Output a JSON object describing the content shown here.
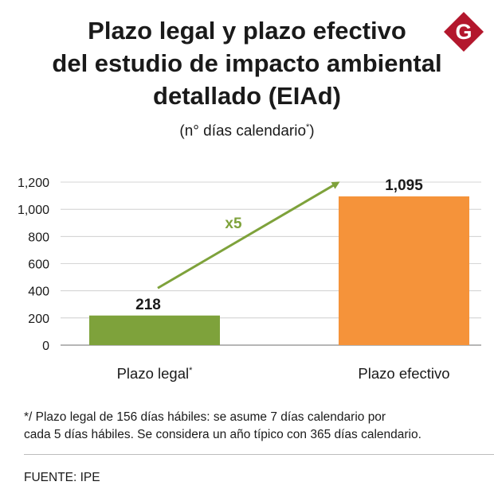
{
  "header": {
    "title_lines": [
      "Plazo legal y plazo efectivo",
      "del estudio de impacto ambiental",
      "detallado (EIAd)"
    ],
    "subtitle_main": "(n° días calendario",
    "subtitle_mark": "*",
    "subtitle_close": ")",
    "logo_letter": "G"
  },
  "chart_data": {
    "type": "bar",
    "categories": [
      "Plazo legal",
      "Plazo efectivo"
    ],
    "category_marks": [
      "*",
      ""
    ],
    "values": [
      218,
      1095
    ],
    "data_labels": [
      "218",
      "1,095"
    ],
    "ylim": [
      0,
      1200
    ],
    "yticks": [
      0,
      200,
      400,
      600,
      800,
      1000,
      1200
    ],
    "ytick_labels": [
      "0",
      "200",
      "400",
      "600",
      "800",
      "1,000",
      "1,200"
    ],
    "grid": true,
    "colors": [
      "#7ea23b",
      "#f5933a"
    ],
    "annotation": {
      "text": "x5",
      "color": "#7ea23b",
      "from_value": 420,
      "to_value": 1195
    }
  },
  "footnote": {
    "lines": [
      "*/ Plazo legal de 156 días hábiles: se asume 7 días calendario por",
      "cada 5 días hábiles. Se considera un año típico con 365 días calendario."
    ]
  },
  "source": "FUENTE: IPE",
  "colors": {
    "logo": "#b3172d",
    "grid": "#c8c8c8",
    "axis": "#8a8a8a"
  }
}
